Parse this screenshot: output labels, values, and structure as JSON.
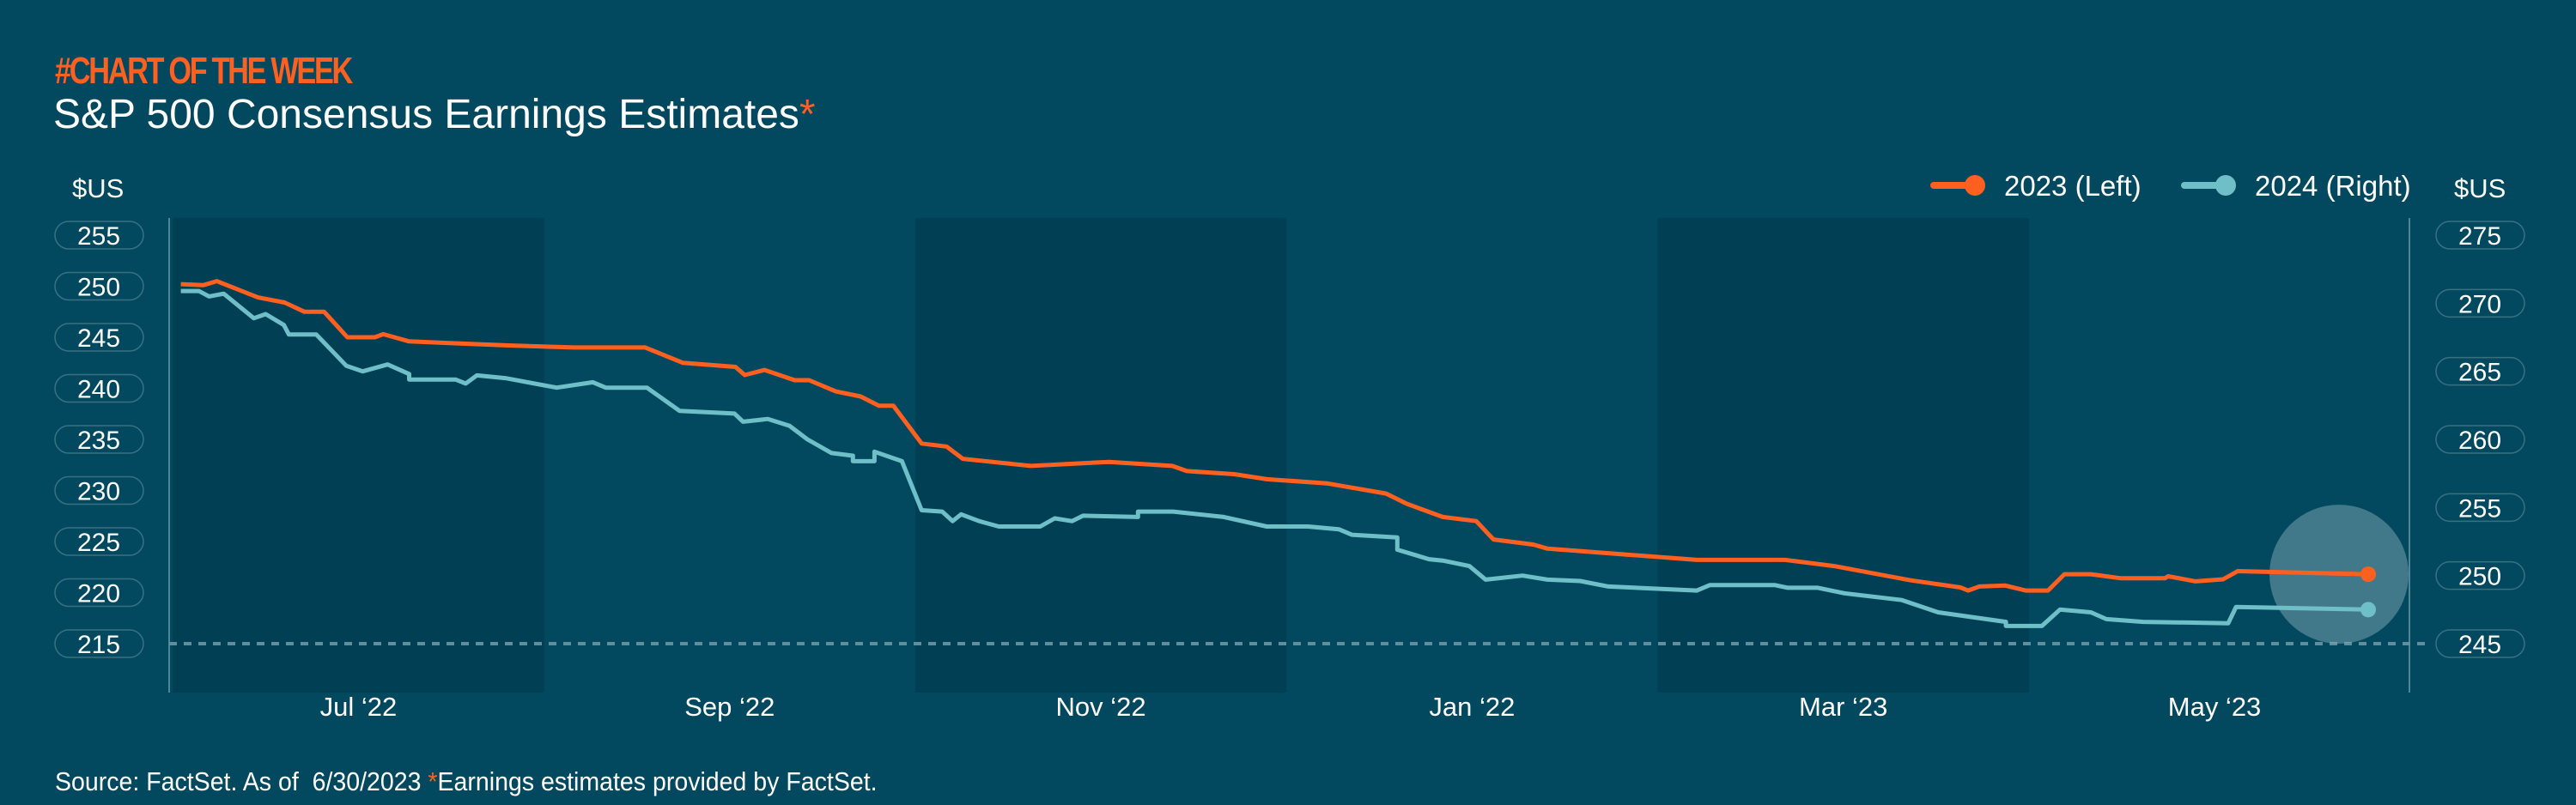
{
  "header": {
    "kicker": "#CHART OF THE WEEK",
    "title": "S&P 500 Consensus Earnings Estimates",
    "title_asterisk": "*"
  },
  "footer": {
    "source": "Source: FactSet. As of  6/30/2023 ",
    "asterisk": "*",
    "note": "Earnings estimates provided by FactSet."
  },
  "colors": {
    "background": "#02495f",
    "band": "#013f55",
    "series_2023": "#ff5f1f",
    "series_2024": "#6fbfc8",
    "highlight": "#8fb3bf"
  },
  "chart_data": {
    "type": "line",
    "title": "S&P 500 Consensus Earnings Estimates",
    "x_unit": "months relative to Jul '22 tick",
    "xlim": [
      -1.02,
      11.05
    ],
    "x_ticks": [
      {
        "value": 0,
        "label": "Jul ‘22"
      },
      {
        "value": 2,
        "label": "Sep ‘22"
      },
      {
        "value": 4,
        "label": "Nov ‘22"
      },
      {
        "value": 6,
        "label": "Jan ‘22"
      },
      {
        "value": 8,
        "label": "Mar ‘23"
      },
      {
        "value": 10,
        "label": "May ‘23"
      }
    ],
    "shaded_bands": [
      [
        -1,
        1
      ],
      [
        3,
        5
      ],
      [
        7,
        9
      ]
    ],
    "y_left": {
      "label": "$US",
      "ylim": [
        215,
        255
      ],
      "ticks": [
        255,
        250,
        245,
        240,
        235,
        230,
        225,
        220,
        215
      ]
    },
    "y_right": {
      "label": "$US",
      "ylim": [
        245,
        275
      ],
      "ticks": [
        275,
        270,
        265,
        260,
        255,
        250,
        245
      ]
    },
    "reference_line": {
      "axis": "left",
      "value": 215,
      "style": "dashed"
    },
    "legend": {
      "placement": "top-right"
    },
    "series": [
      {
        "name": "2023 (Left)",
        "axis": "left",
        "x": [
          -0.957,
          -0.837,
          -0.763,
          -0.541,
          -0.398,
          -0.291,
          -0.185,
          -0.06,
          0.088,
          0.134,
          0.273,
          0.809,
          1.161,
          1.545,
          1.748,
          2.031,
          2.081,
          2.188,
          2.35,
          2.428,
          2.572,
          2.706,
          2.803,
          2.882,
          3.034,
          3.168,
          3.256,
          3.622,
          4.043,
          4.385,
          4.463,
          4.718,
          4.894,
          5.217,
          5.537,
          5.648,
          5.842,
          6.022,
          6.115,
          6.332,
          6.406,
          7.211,
          7.687,
          7.951,
          8.363,
          8.631,
          8.672,
          8.733,
          8.871,
          8.982,
          9.103,
          9.191,
          9.334,
          9.496,
          9.732,
          9.75,
          9.898,
          10.046,
          10.125,
          10.828
        ],
        "y": [
          250.2,
          250.1,
          250.5,
          248.9,
          248.4,
          247.5,
          247.5,
          245.0,
          245.0,
          245.3,
          244.6,
          244.2,
          244.0,
          244.0,
          242.5,
          242.1,
          241.3,
          241.8,
          240.8,
          240.8,
          239.7,
          239.2,
          238.3,
          238.3,
          234.6,
          234.3,
          233.1,
          232.4,
          232.8,
          232.4,
          231.9,
          231.6,
          231.1,
          230.7,
          229.7,
          228.7,
          227.4,
          227.0,
          225.2,
          224.7,
          224.3,
          223.2,
          223.2,
          222.6,
          221.2,
          220.5,
          220.2,
          220.6,
          220.7,
          220.2,
          220.2,
          221.8,
          221.8,
          221.4,
          221.4,
          221.6,
          221.1,
          221.3,
          222.1,
          221.8
        ]
      },
      {
        "name": "2024 (Right)",
        "axis": "right",
        "x": [
          -0.957,
          -0.86,
          -0.805,
          -0.726,
          -0.564,
          -0.5,
          -0.402,
          -0.375,
          -0.227,
          -0.065,
          0.023,
          0.157,
          0.273,
          0.273,
          0.523,
          0.578,
          0.638,
          0.791,
          1.068,
          1.263,
          1.332,
          1.554,
          1.73,
          2.026,
          2.072,
          2.206,
          2.322,
          2.419,
          2.549,
          2.664,
          2.664,
          2.78,
          2.78,
          2.928,
          3.034,
          3.145,
          3.201,
          3.247,
          3.344,
          3.45,
          3.673,
          3.751,
          3.844,
          3.904,
          4.2,
          4.2,
          4.389,
          4.662,
          4.894,
          5.116,
          5.282,
          5.352,
          5.597,
          5.597,
          5.768,
          5.842,
          5.985,
          6.073,
          6.272,
          6.406,
          6.582,
          6.734,
          7.211,
          7.28,
          7.632,
          7.701,
          7.863,
          8.006,
          8.316,
          8.511,
          8.876,
          8.876,
          9.07,
          9.167,
          9.334,
          9.417,
          9.616,
          10.074,
          10.116,
          10.828
        ],
        "y": [
          270.9,
          270.9,
          270.5,
          270.7,
          268.9,
          269.2,
          268.4,
          267.7,
          267.7,
          265.4,
          265.0,
          265.5,
          264.8,
          264.4,
          264.4,
          264.1,
          264.7,
          264.5,
          263.8,
          264.2,
          263.8,
          263.8,
          262.1,
          261.9,
          261.3,
          261.5,
          261.0,
          260.0,
          259.0,
          258.8,
          258.4,
          258.4,
          259.1,
          258.4,
          254.8,
          254.7,
          254.0,
          254.5,
          254.0,
          253.6,
          253.6,
          254.2,
          254.0,
          254.4,
          254.3,
          254.7,
          254.7,
          254.3,
          253.6,
          253.6,
          253.4,
          253.0,
          252.8,
          251.9,
          251.2,
          251.1,
          250.7,
          249.7,
          250.0,
          249.7,
          249.6,
          249.2,
          248.9,
          249.3,
          249.3,
          249.1,
          249.1,
          248.7,
          248.2,
          247.3,
          246.6,
          246.3,
          246.3,
          247.5,
          247.3,
          246.8,
          246.6,
          246.5,
          247.7,
          247.5
        ]
      }
    ]
  }
}
